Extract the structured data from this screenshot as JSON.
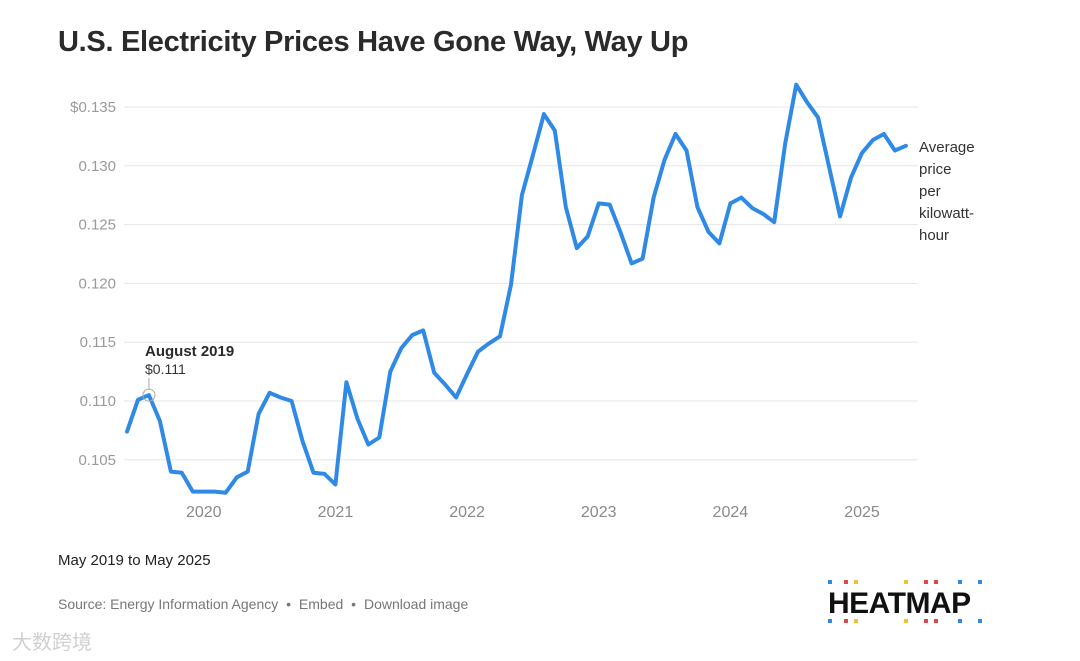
{
  "chart_data": {
    "type": "line",
    "title": "U.S. Electricity Prices Have Gone Way, Way Up",
    "subtitle": "May 2019 to May 2025",
    "xlabel": "",
    "ylabel": "",
    "series": [
      {
        "name": "Average price per kilowatt-hour",
        "color": "#2f8ae5",
        "values": [
          0.1074,
          0.1101,
          0.1105,
          0.1083,
          0.104,
          0.1039,
          0.1023,
          0.1023,
          0.1023,
          0.1022,
          0.1035,
          0.104,
          0.1089,
          0.1107,
          0.1103,
          0.11,
          0.1066,
          0.1039,
          0.1038,
          0.1029,
          0.1116,
          0.1085,
          0.1063,
          0.1069,
          0.1125,
          0.1145,
          0.1156,
          0.116,
          0.1124,
          0.1114,
          0.1103,
          0.1123,
          0.1142,
          0.1149,
          0.1155,
          0.1199,
          0.1275,
          0.1309,
          0.1344,
          0.133,
          0.1265,
          0.123,
          0.124,
          0.1268,
          0.1267,
          0.1243,
          0.1217,
          0.1221,
          0.1273,
          0.1305,
          0.1327,
          0.1313,
          0.1265,
          0.1244,
          0.1234,
          0.1268,
          0.1273,
          0.1264,
          0.1259,
          0.1252,
          0.1319,
          0.1369,
          0.1354,
          0.1341,
          0.1299,
          0.1257,
          0.129,
          0.1311,
          0.1322,
          0.1327,
          0.1313,
          0.1317
        ]
      }
    ],
    "series_label_lines": [
      "Average",
      "price",
      "per",
      "kilowatt-",
      "hour"
    ],
    "x_ticks": [
      {
        "index": 7,
        "label": "2020"
      },
      {
        "index": 19,
        "label": "2021"
      },
      {
        "index": 31,
        "label": "2022"
      },
      {
        "index": 43,
        "label": "2023"
      },
      {
        "index": 55,
        "label": "2024"
      },
      {
        "index": 67,
        "label": "2025"
      }
    ],
    "y_ticks": [
      {
        "value": 0.135,
        "label": "$0.135"
      },
      {
        "value": 0.13,
        "label": "0.130"
      },
      {
        "value": 0.125,
        "label": "0.125"
      },
      {
        "value": 0.12,
        "label": "0.120"
      },
      {
        "value": 0.115,
        "label": "0.115"
      },
      {
        "value": 0.11,
        "label": "0.110"
      },
      {
        "value": 0.105,
        "label": "0.105"
      }
    ],
    "ylim": [
      0.1,
      0.137
    ],
    "grid": true,
    "annotation": {
      "index": 2,
      "title": "August 2019",
      "value_label": "$0.111"
    }
  },
  "footer": {
    "source": "Source: Energy Information Agency",
    "embed": "Embed",
    "download": "Download image",
    "separator": "•"
  },
  "logo": {
    "text": "HEATMAP",
    "colors": [
      "#2f8ae5",
      "#e0474c",
      "#f2c12e"
    ]
  },
  "watermark": "大数跨境"
}
